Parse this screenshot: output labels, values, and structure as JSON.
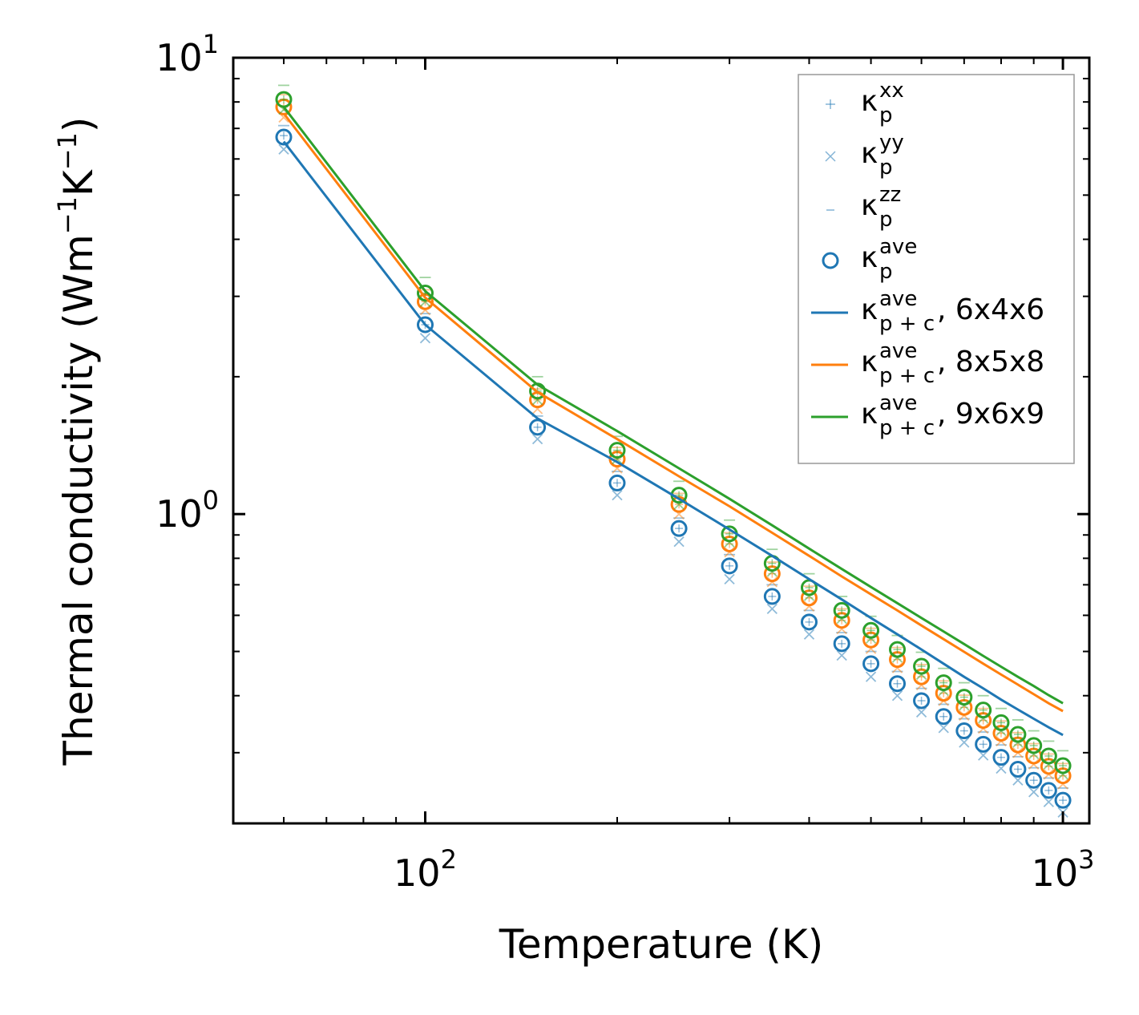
{
  "chart_data": {
    "type": "scatter",
    "xscale": "log",
    "yscale": "log",
    "xlabel": "Temperature (K)",
    "ylabel_base": "Thermal conductivity (Wm",
    "ylabel_tail_k": "K",
    "ylabel_close": ")",
    "ylabel_exp": "−1",
    "xlim": [
      50,
      1100
    ],
    "ylim": [
      0.21,
      10
    ],
    "x_ticks": [
      {
        "base": "10",
        "exp": "2",
        "value": 100
      },
      {
        "base": "10",
        "exp": "3",
        "value": 1000
      }
    ],
    "y_ticks": [
      {
        "base": "10",
        "exp": "0",
        "value": 1
      },
      {
        "base": "10",
        "exp": "1",
        "value": 10
      }
    ],
    "temperatures": [
      60,
      100,
      150,
      200,
      250,
      300,
      350,
      400,
      450,
      500,
      550,
      600,
      650,
      700,
      750,
      800,
      850,
      900,
      950,
      1000
    ],
    "series": [
      {
        "name": "6x4x6",
        "color": "#1f77b4",
        "ave": [
          6.7,
          2.6,
          1.55,
          1.17,
          0.93,
          0.77,
          0.66,
          0.58,
          0.52,
          0.47,
          0.425,
          0.39,
          0.36,
          0.335,
          0.313,
          0.293,
          0.276,
          0.261,
          0.248,
          0.236
        ],
        "xx": [
          6.75,
          2.6,
          1.55,
          1.17,
          0.93,
          0.77,
          0.66,
          0.58,
          0.52,
          0.47,
          0.425,
          0.39,
          0.36,
          0.335,
          0.313,
          0.293,
          0.276,
          0.261,
          0.248,
          0.236
        ],
        "yy": [
          6.3,
          2.43,
          1.46,
          1.1,
          0.87,
          0.72,
          0.62,
          0.545,
          0.49,
          0.44,
          0.4,
          0.368,
          0.34,
          0.316,
          0.296,
          0.277,
          0.261,
          0.246,
          0.234,
          0.222
        ],
        "zz": [
          7.1,
          2.75,
          1.64,
          1.24,
          0.98,
          0.815,
          0.7,
          0.615,
          0.55,
          0.5,
          0.452,
          0.415,
          0.383,
          0.356,
          0.333,
          0.312,
          0.294,
          0.278,
          0.264,
          0.251
        ],
        "pc": [
          6.55,
          2.6,
          1.62,
          1.3,
          1.08,
          0.925,
          0.81,
          0.72,
          0.65,
          0.592,
          0.545,
          0.505,
          0.47,
          0.44,
          0.415,
          0.392,
          0.373,
          0.356,
          0.341,
          0.328
        ]
      },
      {
        "name": "8x5x8",
        "color": "#ff7f0e",
        "ave": [
          7.8,
          2.92,
          1.78,
          1.32,
          1.05,
          0.86,
          0.74,
          0.655,
          0.585,
          0.53,
          0.48,
          0.44,
          0.405,
          0.377,
          0.353,
          0.331,
          0.312,
          0.295,
          0.28,
          0.267
        ],
        "xx": [
          7.8,
          2.92,
          1.78,
          1.32,
          1.05,
          0.86,
          0.74,
          0.655,
          0.585,
          0.53,
          0.48,
          0.44,
          0.405,
          0.377,
          0.353,
          0.331,
          0.312,
          0.295,
          0.28,
          0.267
        ],
        "yy": [
          7.4,
          2.8,
          1.7,
          1.26,
          1.0,
          0.825,
          0.71,
          0.628,
          0.56,
          0.507,
          0.46,
          0.422,
          0.39,
          0.362,
          0.339,
          0.318,
          0.3,
          0.283,
          0.269,
          0.256
        ],
        "zz": [
          8.3,
          3.1,
          1.88,
          1.4,
          1.11,
          0.91,
          0.785,
          0.695,
          0.62,
          0.562,
          0.51,
          0.468,
          0.431,
          0.401,
          0.375,
          0.352,
          0.332,
          0.314,
          0.298,
          0.284
        ],
        "pc": [
          7.55,
          2.98,
          1.85,
          1.46,
          1.21,
          1.04,
          0.91,
          0.81,
          0.73,
          0.667,
          0.615,
          0.57,
          0.532,
          0.499,
          0.47,
          0.445,
          0.423,
          0.403,
          0.385,
          0.37
        ]
      },
      {
        "name": "9x6x9",
        "color": "#2ca02c",
        "ave": [
          8.1,
          3.05,
          1.86,
          1.38,
          1.1,
          0.905,
          0.78,
          0.69,
          0.615,
          0.556,
          0.505,
          0.464,
          0.427,
          0.397,
          0.372,
          0.349,
          0.329,
          0.311,
          0.295,
          0.281
        ],
        "xx": [
          8.1,
          3.05,
          1.86,
          1.38,
          1.1,
          0.905,
          0.78,
          0.69,
          0.615,
          0.556,
          0.505,
          0.464,
          0.427,
          0.397,
          0.372,
          0.349,
          0.329,
          0.311,
          0.295,
          0.281
        ],
        "yy": [
          7.7,
          2.92,
          1.78,
          1.32,
          1.05,
          0.868,
          0.748,
          0.662,
          0.59,
          0.534,
          0.485,
          0.445,
          0.41,
          0.381,
          0.357,
          0.335,
          0.316,
          0.298,
          0.283,
          0.269
        ],
        "zz": [
          8.7,
          3.3,
          2.0,
          1.48,
          1.18,
          0.97,
          0.837,
          0.74,
          0.66,
          0.597,
          0.542,
          0.498,
          0.459,
          0.427,
          0.4,
          0.375,
          0.354,
          0.335,
          0.318,
          0.303
        ],
        "pc": [
          7.8,
          3.08,
          1.92,
          1.52,
          1.26,
          1.08,
          0.945,
          0.84,
          0.758,
          0.692,
          0.638,
          0.592,
          0.553,
          0.519,
          0.489,
          0.463,
          0.44,
          0.42,
          0.401,
          0.385
        ]
      }
    ],
    "legend": {
      "position": "top-right",
      "entries": [
        {
          "marker": "plus",
          "sym": "κ",
          "sub": "p",
          "sup": "xx",
          "suffix": ""
        },
        {
          "marker": "cross",
          "sym": "κ",
          "sub": "p",
          "sup": "yy",
          "suffix": ""
        },
        {
          "marker": "dash",
          "sym": "κ",
          "sub": "p",
          "sup": "zz",
          "suffix": ""
        },
        {
          "marker": "circle",
          "sym": "κ",
          "sub": "p",
          "sup": "ave",
          "suffix": ""
        },
        {
          "marker": "line-0",
          "sym": "κ",
          "sub": "p + c",
          "sup": "ave",
          "suffix": ", 6x4x6"
        },
        {
          "marker": "line-1",
          "sym": "κ",
          "sub": "p + c",
          "sup": "ave",
          "suffix": ", 8x5x8"
        },
        {
          "marker": "line-2",
          "sym": "κ",
          "sub": "p + c",
          "sup": "ave",
          "suffix": ", 9x6x9"
        }
      ]
    },
    "legend_marker_color": "#1f77b4"
  }
}
